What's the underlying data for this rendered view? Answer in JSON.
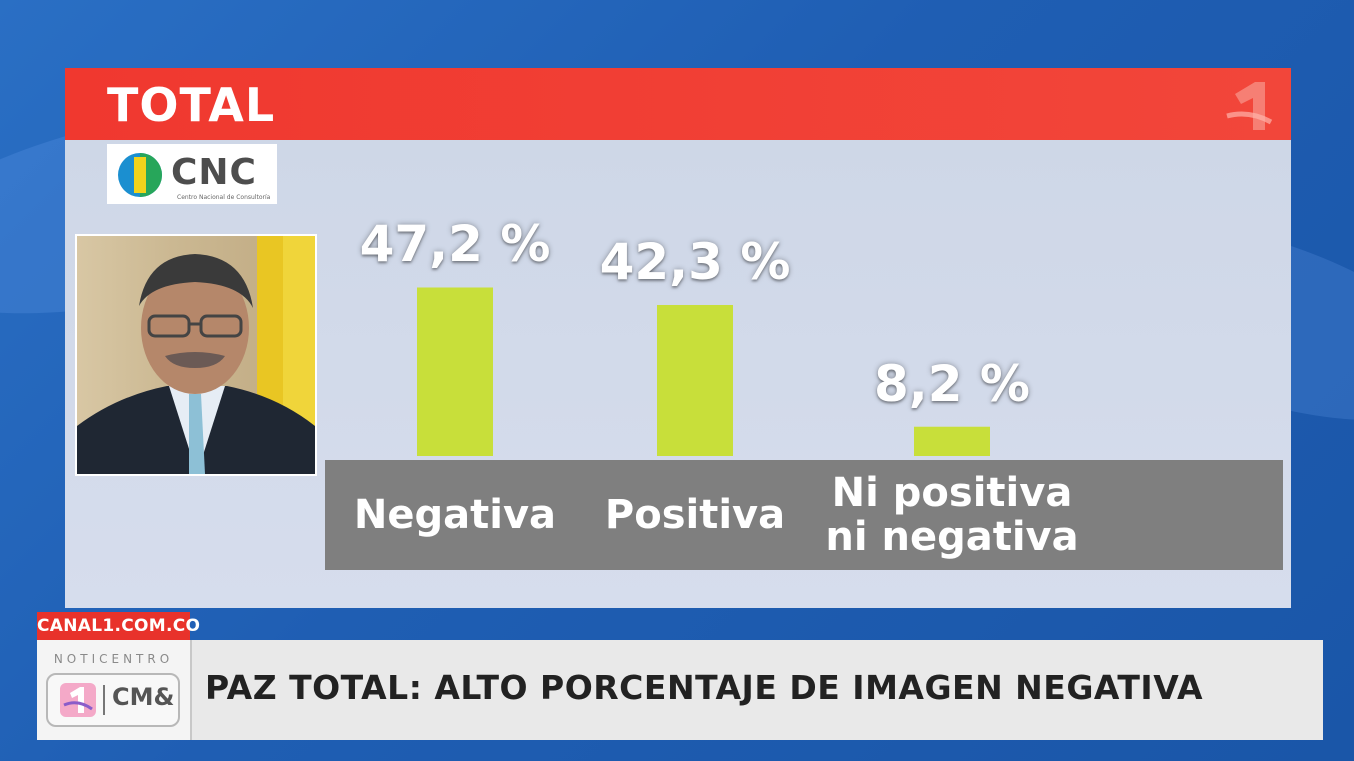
{
  "panel": {
    "title": "TOTAL",
    "source_logo": {
      "text": "CNC",
      "subtitle": "Centro Nacional de Consultoría",
      "icon": "cnc-logo-icon"
    },
    "channel_logo_icon": "canal1-logo-icon",
    "portrait_icon": "person-portrait"
  },
  "chart_data": {
    "type": "bar",
    "categories": [
      "Negativa",
      "Positiva",
      "Ni positiva ni negativa"
    ],
    "category_lines": [
      [
        "Negativa"
      ],
      [
        "Positiva"
      ],
      [
        "Ni positiva",
        "ni negativa"
      ]
    ],
    "values": [
      47.2,
      42.3,
      8.2
    ],
    "value_labels": [
      "47,2 %",
      "42,3 %",
      "8,2 %"
    ],
    "unit": "%",
    "bar_color": "#c8df3a",
    "ylim": [
      0,
      50
    ],
    "grid": false
  },
  "footer": {
    "url": "CANAL1.COM.CO",
    "program": "NOTICENTRO",
    "brand": "CM&",
    "headline": "PAZ TOTAL: ALTO PORCENTAJE DE IMAGEN NEGATIVA"
  },
  "colors": {
    "header_red": "#f0382f",
    "background_blue": "#1f5eb3",
    "label_band_gray": "#7f7f7f"
  }
}
